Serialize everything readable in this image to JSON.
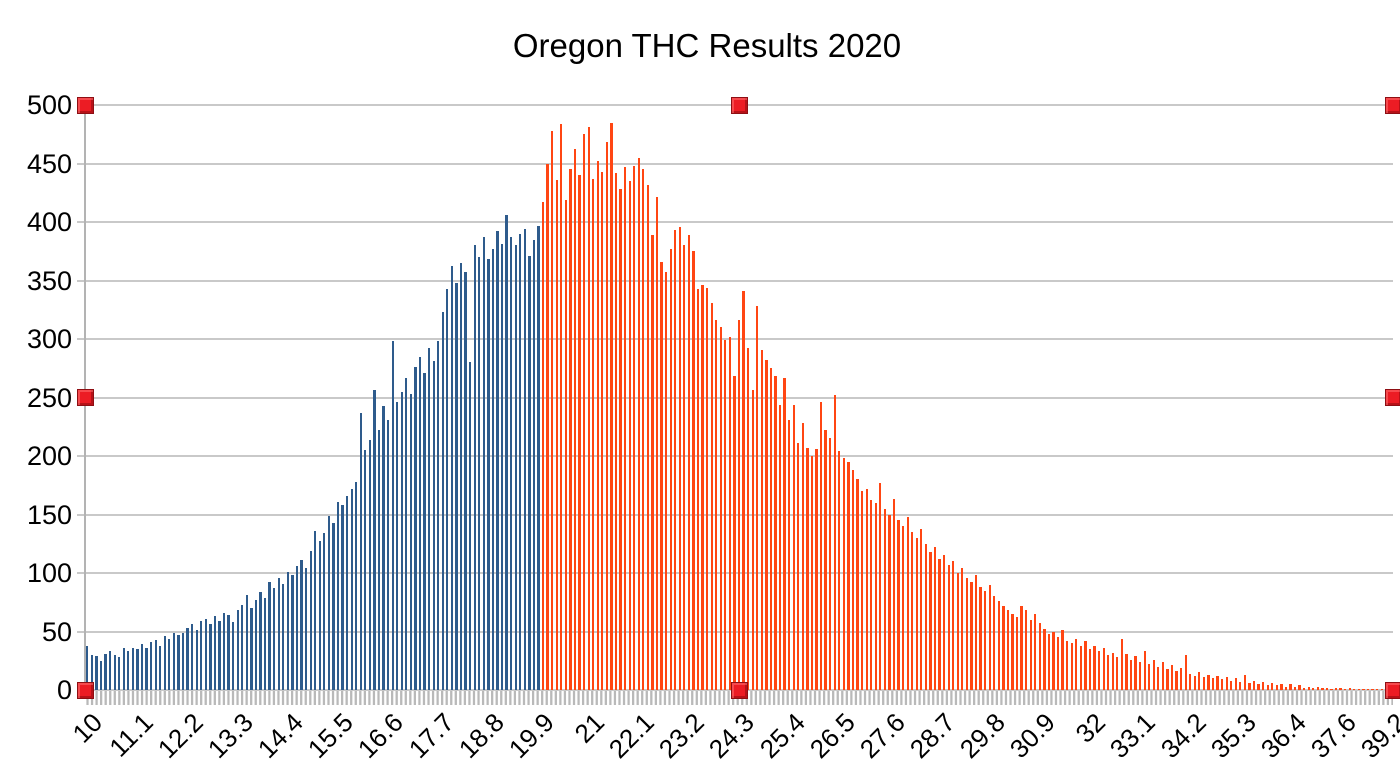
{
  "chart_data": {
    "type": "bar",
    "title": "Oregon THC Results 2020",
    "grid": "horizontal",
    "legend": "none",
    "categories": {
      "comment_visible_structure": "THC % bins from 10.0 rising by 0.1 up to 37.4, then sparse observed bins to 39.2",
      "start": 10,
      "step": 0.1,
      "end": 37.4,
      "tail": [
        37.6,
        37.7,
        37.8,
        38,
        38.1,
        38.3,
        38.5,
        38.7,
        38.9,
        39,
        39.1,
        39.2
      ]
    },
    "values": [
      38,
      30,
      29,
      25,
      31,
      33,
      30,
      28,
      36,
      33,
      36,
      35,
      39,
      36,
      41,
      43,
      38,
      46,
      44,
      49,
      47,
      49,
      53,
      56,
      51,
      59,
      61,
      56,
      63,
      59,
      66,
      64,
      58,
      68,
      73,
      81,
      70,
      77,
      84,
      79,
      92,
      87,
      96,
      91,
      101,
      98,
      106,
      111,
      104,
      119,
      136,
      127,
      134,
      149,
      143,
      161,
      158,
      166,
      172,
      178,
      237,
      205,
      214,
      256,
      222,
      243,
      231,
      298,
      246,
      255,
      267,
      253,
      276,
      285,
      271,
      292,
      281,
      298,
      323,
      343,
      362,
      348,
      365,
      357,
      280,
      380,
      370,
      387,
      368,
      377,
      392,
      381,
      406,
      387,
      380,
      390,
      394,
      371,
      385,
      397,
      417,
      450,
      478,
      436,
      484,
      419,
      445,
      462,
      440,
      475,
      481,
      437,
      452,
      443,
      468,
      485,
      442,
      428,
      447,
      435,
      448,
      455,
      445,
      432,
      389,
      421,
      366,
      357,
      377,
      393,
      396,
      380,
      389,
      375,
      343,
      346,
      344,
      331,
      316,
      310,
      299,
      302,
      268,
      316,
      341,
      292,
      256,
      328,
      291,
      282,
      275,
      268,
      244,
      267,
      231,
      244,
      211,
      228,
      207,
      200,
      206,
      246,
      222,
      215,
      252,
      204,
      198,
      195,
      188,
      180,
      170,
      172,
      162,
      160,
      177,
      155,
      150,
      163,
      145,
      140,
      148,
      135,
      130,
      138,
      125,
      118,
      122,
      112,
      115,
      107,
      110,
      100,
      104,
      96,
      92,
      98,
      88,
      85,
      90,
      80,
      76,
      72,
      68,
      65,
      62,
      72,
      68,
      60,
      65,
      57,
      52,
      48,
      50,
      45,
      51,
      42,
      40,
      44,
      38,
      42,
      35,
      38,
      33,
      36,
      30,
      32,
      28,
      44,
      31,
      26,
      29,
      24,
      33,
      22,
      26,
      20,
      24,
      18,
      21,
      16,
      19,
      30,
      14,
      12,
      15,
      11,
      13,
      10,
      12,
      9,
      11,
      8,
      10,
      7,
      13,
      6,
      8,
      5,
      7,
      4,
      6,
      4,
      5,
      3,
      5,
      3,
      4,
      2,
      3,
      2,
      3,
      2,
      2,
      1,
      2,
      2,
      1,
      2,
      1,
      1,
      1,
      1,
      1,
      1,
      1,
      1,
      1
    ],
    "split_value": 20,
    "split_index": 100,
    "y_axis": {
      "min": 0,
      "max": 500,
      "step": 50,
      "tick_labels": [
        "0",
        "50",
        "100",
        "150",
        "200",
        "250",
        "300",
        "350",
        "400",
        "450",
        "500"
      ]
    },
    "x_axis": {
      "tick_label_every": 11,
      "tick_labels": [
        "10",
        "11.1",
        "12.2",
        "13.3",
        "14.4",
        "15.5",
        "16.6",
        "17.7",
        "18.8",
        "19.9",
        "21",
        "22.1",
        "23.2",
        "24.3",
        "25.4",
        "26.5",
        "27.6",
        "28.7",
        "29.8",
        "30.9",
        "32",
        "33.1",
        "34.2",
        "35.3",
        "36.4",
        "37.6",
        "39.2"
      ]
    },
    "colors": {
      "below_split": "#2E5B8C",
      "above_split": "#FF4613",
      "gridline": "#C9C9C9",
      "axis_line": "#B3B3B3",
      "tick_band": "#B9B9B9",
      "background": "#FFFFFF",
      "handle": "#EC1C24",
      "handle_border": "#8E0E13"
    }
  },
  "selection": {
    "state": "chart-selected",
    "handles": [
      "top-left",
      "top-center",
      "top-right",
      "mid-left",
      "mid-right",
      "bottom-left",
      "bottom-center",
      "bottom-right"
    ]
  }
}
